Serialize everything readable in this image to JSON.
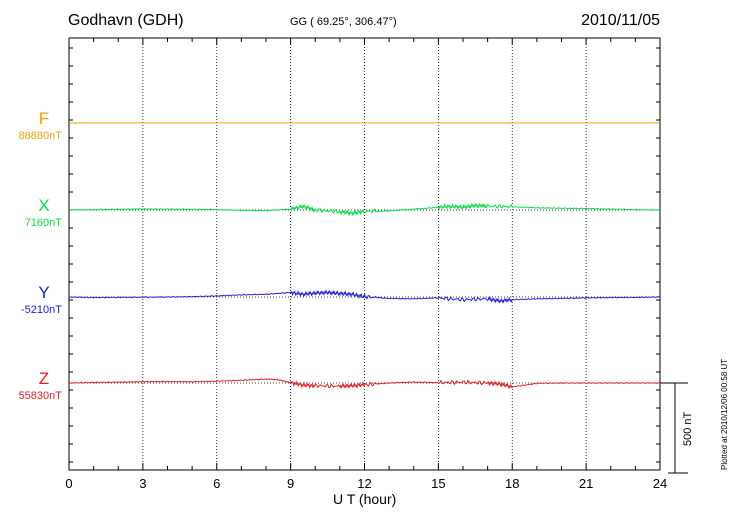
{
  "header": {
    "station": "Godhavn (GDH)",
    "coords": "GG ( 69.25°, 306.47°)",
    "date": "2010/11/05"
  },
  "footer": {
    "plotted": "Plotted at 2010/12/06 00:58 UT"
  },
  "scale_bar": {
    "label": "500 nT",
    "value_nT": 500
  },
  "chart_data": {
    "type": "line",
    "xlabel": "U T (hour)",
    "xlim": [
      0,
      24
    ],
    "xticks": [
      "0",
      "3",
      "6",
      "9",
      "12",
      "15",
      "18",
      "21",
      "24"
    ],
    "grid": "vertical dotted at 3-hour intervals",
    "series": [
      {
        "name": "F",
        "baseline_label": "88880nT",
        "color": "#f0a000",
        "x": [
          0,
          3,
          6,
          9,
          12,
          15,
          18,
          21,
          24
        ],
        "offset_nT": [
          0,
          0,
          0,
          0,
          0,
          0,
          0,
          0,
          0
        ]
      },
      {
        "name": "X",
        "baseline_label": "7160nT",
        "color": "#00e040",
        "x": [
          0,
          1,
          2,
          3,
          4,
          5,
          6,
          7,
          8,
          9,
          9.5,
          10,
          11,
          11.5,
          12,
          13,
          14,
          15,
          15.5,
          16,
          16.5,
          17,
          18,
          19,
          20,
          21,
          22,
          23,
          24
        ],
        "offset_nT": [
          0,
          2,
          4,
          6,
          5,
          4,
          2,
          -2,
          -3,
          5,
          20,
          0,
          -10,
          -18,
          -8,
          -5,
          5,
          15,
          20,
          15,
          25,
          22,
          18,
          12,
          10,
          8,
          5,
          2,
          0
        ]
      },
      {
        "name": "Y",
        "baseline_label": "-5210nT",
        "color": "#2020e0",
        "x": [
          0,
          1,
          2,
          3,
          4,
          5,
          6,
          7,
          8,
          9,
          9.5,
          10,
          10.5,
          11,
          11.5,
          12,
          13,
          14,
          15,
          16,
          17,
          17.5,
          18,
          19,
          20,
          21,
          22,
          23,
          24
        ],
        "offset_nT": [
          0,
          -3,
          -2,
          -1,
          0,
          2,
          6,
          12,
          15,
          25,
          15,
          22,
          25,
          20,
          15,
          2,
          -8,
          -10,
          -5,
          -15,
          -10,
          -22,
          -15,
          -10,
          -8,
          -5,
          -3,
          -2,
          0
        ]
      },
      {
        "name": "Z",
        "baseline_label": "55830nT",
        "color": "#e02020",
        "x": [
          0,
          1,
          2,
          3,
          4,
          5,
          6,
          7,
          8,
          8.5,
          9,
          9.5,
          10,
          11,
          11.5,
          12,
          13,
          14,
          15,
          16,
          17,
          17.5,
          18,
          19,
          20,
          21,
          22,
          23,
          24
        ],
        "offset_nT": [
          0,
          3,
          5,
          7,
          8,
          7,
          10,
          15,
          22,
          18,
          2,
          -12,
          -15,
          -18,
          -15,
          -10,
          0,
          5,
          2,
          5,
          0,
          -5,
          -22,
          -2,
          0,
          0,
          0,
          0,
          0
        ]
      }
    ]
  }
}
